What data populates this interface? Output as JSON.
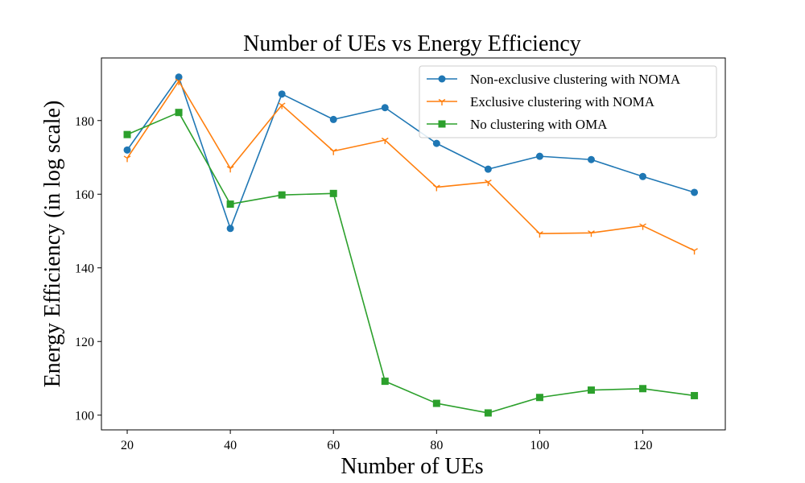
{
  "chart_data": {
    "type": "line",
    "title": "Number of UEs vs Energy Efficiency",
    "xlabel": "Number of UEs",
    "ylabel": "Energy Efficiency (in log scale)",
    "x": [
      20,
      30,
      40,
      50,
      60,
      70,
      80,
      90,
      100,
      110,
      120,
      130
    ],
    "xlim": [
      15,
      136
    ],
    "ylim": [
      96,
      197
    ],
    "xticks": [
      20,
      40,
      60,
      80,
      100,
      120
    ],
    "yticks": [
      100,
      120,
      140,
      160,
      180
    ],
    "grid": false,
    "legend_position": "top-right",
    "series": [
      {
        "name": "Non-exclusive clustering with NOMA",
        "color": "#1f77b4",
        "marker": "circle",
        "values": [
          172,
          191.8,
          150.7,
          187.2,
          180.3,
          183.5,
          173.8,
          166.8,
          170.3,
          169.4,
          164.8,
          160.5
        ]
      },
      {
        "name": "Exclusive clustering with NOMA",
        "color": "#ff7f0e",
        "marker": "tri_down",
        "values": [
          169.8,
          190.7,
          167,
          184.2,
          171.7,
          174.7,
          161.9,
          163.3,
          149.3,
          149.5,
          151.4,
          144.7
        ]
      },
      {
        "name": "No clustering with OMA",
        "color": "#2ca02c",
        "marker": "square",
        "values": [
          176.2,
          182.2,
          157.3,
          159.8,
          160.2,
          109.2,
          103.2,
          100.6,
          104.8,
          106.8,
          107.2,
          105.3
        ]
      }
    ]
  }
}
